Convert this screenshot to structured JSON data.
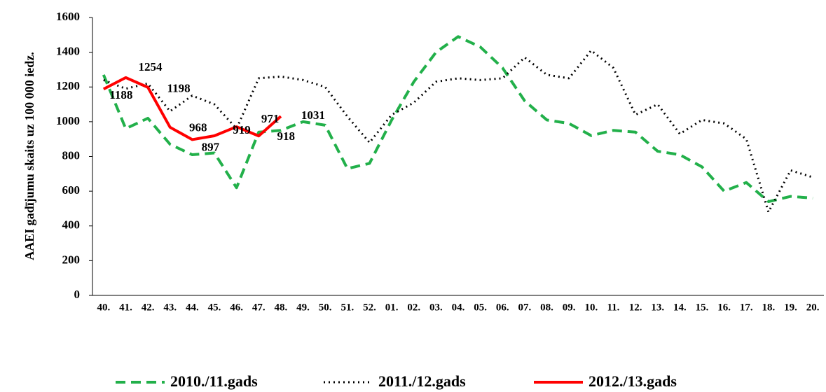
{
  "chart_data": {
    "type": "line",
    "y_label": "AAEI gadījumu skaits uz 100 000 iedz.",
    "categories": [
      "40.",
      "41.",
      "42.",
      "43.",
      "44.",
      "45.",
      "46.",
      "47.",
      "48.",
      "49.",
      "50.",
      "51.",
      "52.",
      "01.",
      "02.",
      "03.",
      "04.",
      "05.",
      "06.",
      "07.",
      "08.",
      "09.",
      "10.",
      "11.",
      "12.",
      "13.",
      "14.",
      "15.",
      "16.",
      "17.",
      "18.",
      "19.",
      "20."
    ],
    "series": [
      {
        "name": "2010./11.gads",
        "color": "#22b04a",
        "style": "dashed",
        "values": [
          1270,
          960,
          1020,
          870,
          810,
          820,
          620,
          940,
          950,
          1000,
          980,
          730,
          760,
          1010,
          1230,
          1400,
          1490,
          1430,
          1310,
          1120,
          1010,
          990,
          920,
          950,
          940,
          830,
          810,
          740,
          600,
          650,
          540,
          570,
          560
        ]
      },
      {
        "name": "2011./12.gads",
        "color": "#000000",
        "style": "dotted",
        "values": [
          1240,
          1190,
          1220,
          1060,
          1150,
          1100,
          960,
          1250,
          1260,
          1240,
          1200,
          1030,
          880,
          1040,
          1110,
          1230,
          1250,
          1240,
          1250,
          1370,
          1270,
          1250,
          1410,
          1310,
          1040,
          1100,
          930,
          1010,
          990,
          900,
          480,
          720,
          680
        ]
      },
      {
        "name": "2012./13.gads",
        "color": "#ff0000",
        "style": "solid",
        "show_labels": true,
        "values": [
          1188,
          1254,
          1198,
          968,
          897,
          919,
          971,
          918,
          1031,
          null,
          null,
          null,
          null,
          null,
          null,
          null,
          null,
          null,
          null,
          null,
          null,
          null,
          null,
          null,
          null,
          null,
          null,
          null,
          null,
          null,
          null,
          null,
          null
        ]
      }
    ],
    "ylim": [
      0,
      1600
    ],
    "yticks": [
      0,
      200,
      400,
      600,
      800,
      1000,
      1200,
      1400,
      1600
    ],
    "grid": false,
    "legend": "bottom"
  }
}
